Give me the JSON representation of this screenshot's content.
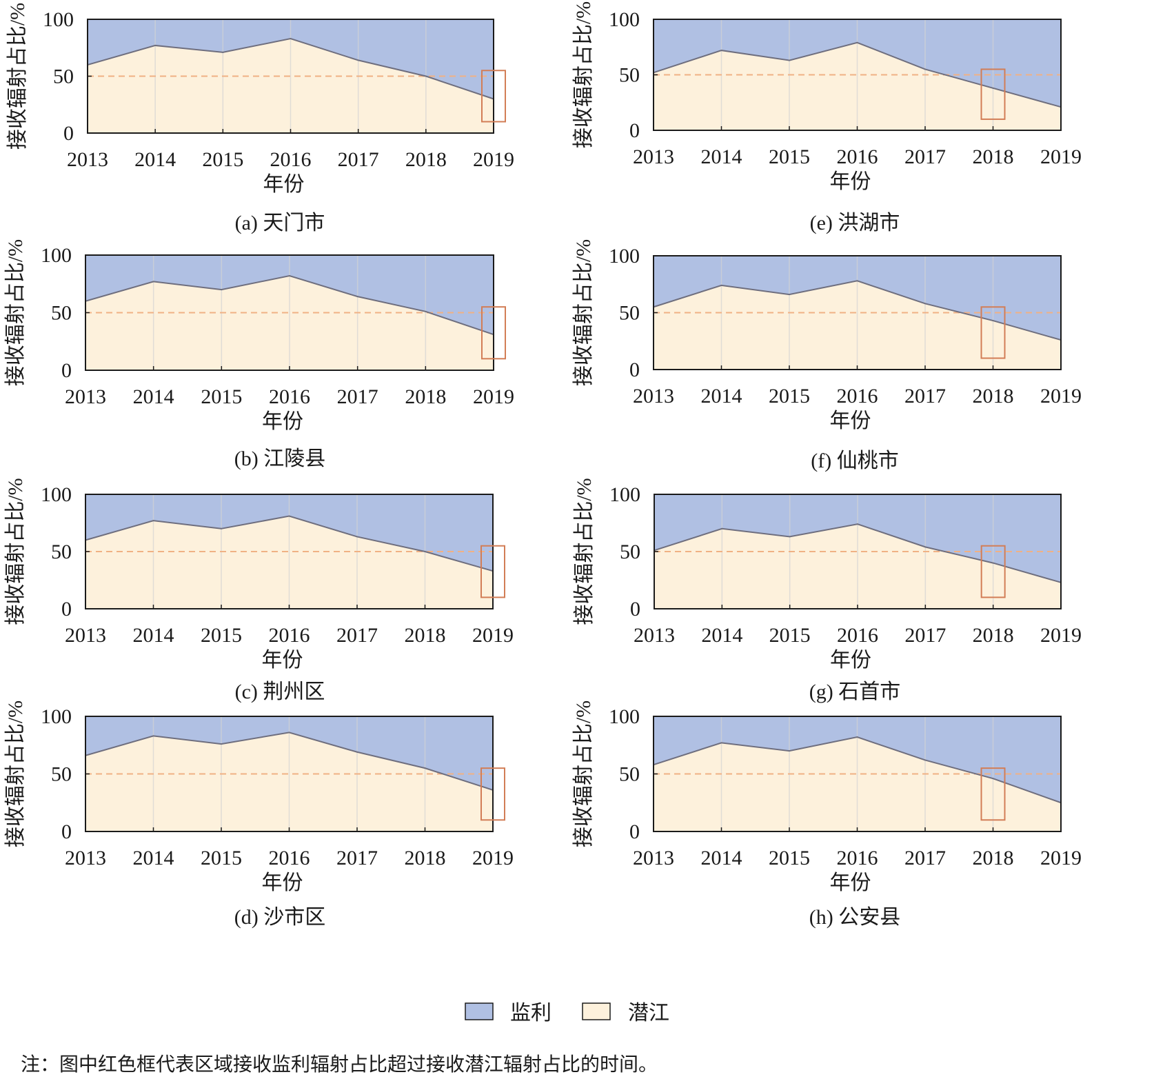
{
  "colors": {
    "upper_fill": "#b0c0e3",
    "lower_fill": "#fdf1dc",
    "boundary_line": "#6e6e7e",
    "frame": "#1a1a1a",
    "grid": "#d3d3d3",
    "dashed_line": "#f0b184",
    "highlight_box": "#d27d56"
  },
  "legend": [
    {
      "label": "监利",
      "color": "#b0c0e3"
    },
    {
      "label": "潜江",
      "color": "#fdf1dc"
    }
  ],
  "note": "注：图中红色框代表区域接收监利辐射占比超过接收潜江辐射占比的时间。",
  "chart_data": [
    {
      "type": "area",
      "caption": "(a) 天门市",
      "ylabel": "接收辐射占比/%",
      "xlabel": "年份",
      "x": [
        "2013",
        "2014",
        "2015",
        "2016",
        "2017",
        "2018",
        "2019"
      ],
      "series": [
        {
          "name": "潜江",
          "values": [
            60,
            77,
            71,
            83,
            64,
            50,
            30
          ]
        },
        {
          "name": "监利",
          "values": [
            40,
            23,
            29,
            17,
            36,
            50,
            70
          ]
        }
      ],
      "ylim": [
        0,
        100
      ],
      "yticks": [
        0,
        50,
        100
      ],
      "reference_line": 50,
      "highlight": "2019"
    },
    {
      "type": "area",
      "caption": "(b) 江陵县",
      "ylabel": "接收辐射占比/%",
      "xlabel": "年份",
      "x": [
        "2013",
        "2014",
        "2015",
        "2016",
        "2017",
        "2018",
        "2019"
      ],
      "series": [
        {
          "name": "潜江",
          "values": [
            60,
            77,
            70,
            82,
            64,
            51,
            31
          ]
        },
        {
          "name": "监利",
          "values": [
            40,
            23,
            30,
            18,
            36,
            49,
            69
          ]
        }
      ],
      "ylim": [
        0,
        100
      ],
      "yticks": [
        0,
        50,
        100
      ],
      "reference_line": 50,
      "highlight": "2019"
    },
    {
      "type": "area",
      "caption": "(c) 荆州区",
      "ylabel": "接收辐射占比/%",
      "xlabel": "年份",
      "x": [
        "2013",
        "2014",
        "2015",
        "2016",
        "2017",
        "2018",
        "2019"
      ],
      "series": [
        {
          "name": "潜江",
          "values": [
            60,
            77,
            70,
            81,
            63,
            50,
            33
          ]
        },
        {
          "name": "监利",
          "values": [
            40,
            23,
            30,
            19,
            37,
            50,
            67
          ]
        }
      ],
      "ylim": [
        0,
        100
      ],
      "yticks": [
        0,
        50,
        100
      ],
      "reference_line": 50,
      "highlight": "2019"
    },
    {
      "type": "area",
      "caption": "(d) 沙市区",
      "ylabel": "接收辐射占比/%",
      "xlabel": "年份",
      "x": [
        "2013",
        "2014",
        "2015",
        "2016",
        "2017",
        "2018",
        "2019"
      ],
      "series": [
        {
          "name": "潜江",
          "values": [
            66,
            83,
            76,
            86,
            69,
            55,
            36
          ]
        },
        {
          "name": "监利",
          "values": [
            34,
            17,
            24,
            14,
            31,
            45,
            64
          ]
        }
      ],
      "ylim": [
        0,
        100
      ],
      "yticks": [
        0,
        50,
        100
      ],
      "reference_line": 50,
      "highlight": "2019"
    },
    {
      "type": "area",
      "caption": "(e) 洪湖市",
      "ylabel": "接收辐射占比/%",
      "xlabel": "年份",
      "x": [
        "2013",
        "2014",
        "2015",
        "2016",
        "2017",
        "2018",
        "2019"
      ],
      "series": [
        {
          "name": "潜江",
          "values": [
            52,
            72,
            63,
            79,
            55,
            38,
            21
          ]
        },
        {
          "name": "监利",
          "values": [
            48,
            28,
            37,
            21,
            45,
            62,
            79
          ]
        }
      ],
      "ylim": [
        0,
        100
      ],
      "yticks": [
        0,
        50,
        100
      ],
      "reference_line": 50,
      "highlight": "2018"
    },
    {
      "type": "area",
      "caption": "(f) 仙桃市",
      "ylabel": "接收辐射占比/%",
      "xlabel": "年份",
      "x": [
        "2013",
        "2014",
        "2015",
        "2016",
        "2017",
        "2018",
        "2019"
      ],
      "series": [
        {
          "name": "潜江",
          "values": [
            55,
            74,
            66,
            78,
            58,
            43,
            26
          ]
        },
        {
          "name": "监利",
          "values": [
            45,
            26,
            34,
            22,
            42,
            57,
            74
          ]
        }
      ],
      "ylim": [
        0,
        100
      ],
      "yticks": [
        0,
        50,
        100
      ],
      "reference_line": 50,
      "highlight": "2018"
    },
    {
      "type": "area",
      "caption": "(g) 石首市",
      "ylabel": "接收辐射占比/%",
      "xlabel": "年份",
      "x": [
        "2013",
        "2014",
        "2015",
        "2016",
        "2017",
        "2018",
        "2019"
      ],
      "series": [
        {
          "name": "潜江",
          "values": [
            51,
            70,
            63,
            74,
            54,
            40,
            23
          ]
        },
        {
          "name": "监利",
          "values": [
            49,
            30,
            37,
            26,
            46,
            60,
            77
          ]
        }
      ],
      "ylim": [
        0,
        100
      ],
      "yticks": [
        0,
        50,
        100
      ],
      "reference_line": 50,
      "highlight": "2018"
    },
    {
      "type": "area",
      "caption": "(h) 公安县",
      "ylabel": "接收辐射占比/%",
      "xlabel": "年份",
      "x": [
        "2013",
        "2014",
        "2015",
        "2016",
        "2017",
        "2018",
        "2019"
      ],
      "series": [
        {
          "name": "潜江",
          "values": [
            58,
            77,
            70,
            82,
            62,
            46,
            25
          ]
        },
        {
          "name": "监利",
          "values": [
            42,
            23,
            30,
            18,
            38,
            54,
            75
          ]
        }
      ],
      "ylim": [
        0,
        100
      ],
      "yticks": [
        0,
        50,
        100
      ],
      "reference_line": 50,
      "highlight": "2018"
    }
  ]
}
